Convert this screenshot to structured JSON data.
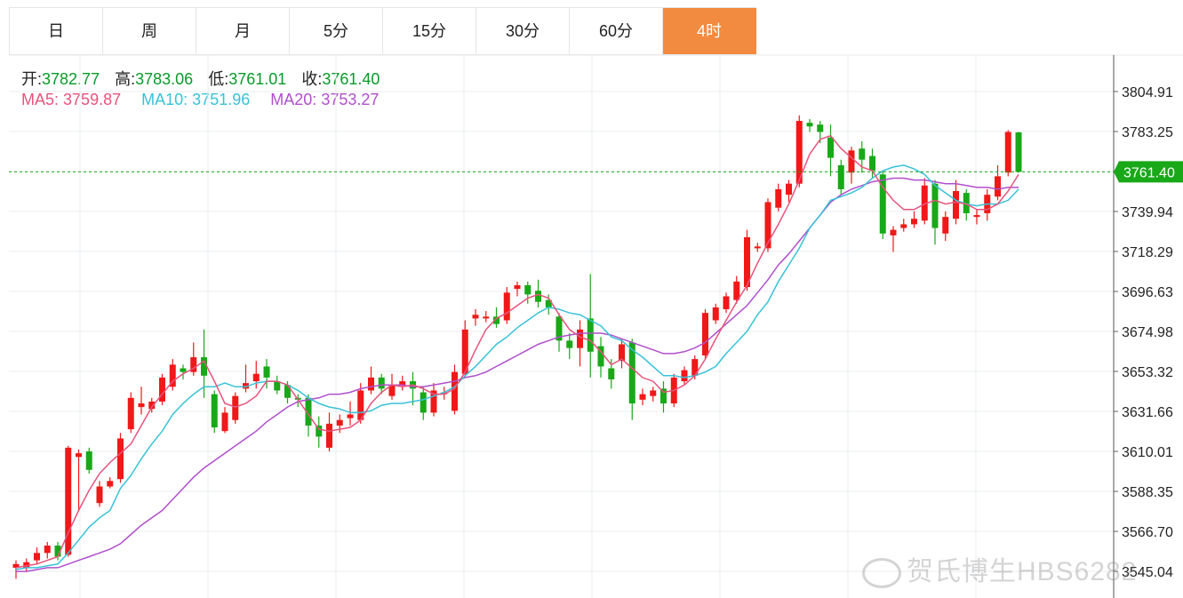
{
  "tabs": [
    {
      "label": "日",
      "active": false
    },
    {
      "label": "周",
      "active": false
    },
    {
      "label": "月",
      "active": false
    },
    {
      "label": "5分",
      "active": false
    },
    {
      "label": "15分",
      "active": false
    },
    {
      "label": "30分",
      "active": false
    },
    {
      "label": "60分",
      "active": false
    },
    {
      "label": "4时",
      "active": true
    }
  ],
  "ohlc": {
    "open_label": "开:",
    "open": "3782.77",
    "high_label": "高:",
    "high": "3783.06",
    "low_label": "低:",
    "low": "3761.01",
    "close_label": "收:",
    "close": "3761.40"
  },
  "ma": {
    "ma5_label": "MA5:",
    "ma5": "3759.87",
    "ma10_label": "MA10:",
    "ma10": "3751.96",
    "ma20_label": "MA20:",
    "ma20": "3753.27"
  },
  "colors": {
    "up": "#f01818",
    "down": "#18a818",
    "ma5": "#e8537c",
    "ma10": "#38c2d8",
    "ma20": "#b04fcc",
    "price_tag": "#18a818",
    "active_tab": "#f28a3f"
  },
  "watermark": "贺氏博生HBS6282",
  "chart_data": {
    "type": "candlestick",
    "y_ticks": [
      "3804.91",
      "3783.25",
      "3761.59",
      "3739.94",
      "3718.29",
      "3696.63",
      "3674.98",
      "3653.32",
      "3631.66",
      "3610.01",
      "3588.35",
      "3566.70",
      "3545.04"
    ],
    "y_tick_values": [
      3804.91,
      3783.25,
      3761.59,
      3739.94,
      3718.29,
      3696.63,
      3674.98,
      3653.32,
      3631.66,
      3610.01,
      3588.35,
      3566.7,
      3545.04
    ],
    "ylim": [
      3540,
      3816
    ],
    "last_price_label": "3761.40",
    "last_price": 3761.4,
    "candles": [
      [
        3547,
        3549,
        3541,
        3551
      ],
      [
        3547,
        3550,
        3545,
        3552
      ],
      [
        3551,
        3555,
        3549,
        3558
      ],
      [
        3555,
        3559,
        3552,
        3561
      ],
      [
        3559,
        3553,
        3551,
        3561
      ],
      [
        3554,
        3612,
        3553,
        3613
      ],
      [
        3607,
        3609,
        3578,
        3611
      ],
      [
        3610,
        3600,
        3598,
        3612
      ],
      [
        3582,
        3591,
        3580,
        3594
      ],
      [
        3591,
        3594,
        3590,
        3596
      ],
      [
        3595,
        3617,
        3593,
        3620
      ],
      [
        3622,
        3639,
        3620,
        3642
      ],
      [
        3634,
        3636,
        3630,
        3645
      ],
      [
        3633,
        3637,
        3631,
        3639
      ],
      [
        3637,
        3650,
        3635,
        3652
      ],
      [
        3645,
        3657,
        3643,
        3660
      ],
      [
        3655,
        3653,
        3649,
        3657
      ],
      [
        3653,
        3661,
        3651,
        3669
      ],
      [
        3661,
        3651,
        3639,
        3676
      ],
      [
        3641,
        3623,
        3620,
        3643
      ],
      [
        3621,
        3631,
        3620,
        3634
      ],
      [
        3627,
        3640,
        3625,
        3642
      ],
      [
        3644,
        3647,
        3642,
        3657
      ],
      [
        3648,
        3652,
        3644,
        3659
      ],
      [
        3656,
        3650,
        3644,
        3660
      ],
      [
        3648,
        3643,
        3641,
        3651
      ],
      [
        3646,
        3639,
        3636,
        3648
      ],
      [
        3639,
        3638,
        3634,
        3641
      ],
      [
        3639,
        3624,
        3618,
        3641
      ],
      [
        3624,
        3618,
        3612,
        3629
      ],
      [
        3612,
        3625,
        3610,
        3631
      ],
      [
        3624,
        3627,
        3620,
        3630
      ],
      [
        3628,
        3630,
        3624,
        3637
      ],
      [
        3627,
        3643,
        3625,
        3647
      ],
      [
        3643,
        3650,
        3641,
        3656
      ],
      [
        3650,
        3644,
        3641,
        3652
      ],
      [
        3640,
        3646,
        3638,
        3652
      ],
      [
        3646,
        3648,
        3643,
        3651
      ],
      [
        3648,
        3644,
        3635,
        3653
      ],
      [
        3642,
        3631,
        3627,
        3645
      ],
      [
        3631,
        3643,
        3629,
        3647
      ],
      [
        3641,
        3642,
        3638,
        3645
      ],
      [
        3632,
        3653,
        3630,
        3657
      ],
      [
        3652,
        3676,
        3650,
        3681
      ],
      [
        3682,
        3684,
        3678,
        3687
      ],
      [
        3682,
        3683,
        3680,
        3686
      ],
      [
        3683,
        3679,
        3677,
        3688
      ],
      [
        3681,
        3696,
        3679,
        3699
      ],
      [
        3698,
        3700,
        3694,
        3702
      ],
      [
        3700,
        3695,
        3690,
        3702
      ],
      [
        3697,
        3691,
        3688,
        3703
      ],
      [
        3692,
        3688,
        3684,
        3695
      ],
      [
        3683,
        3670,
        3664,
        3685
      ],
      [
        3670,
        3666,
        3660,
        3674
      ],
      [
        3666,
        3676,
        3656,
        3681
      ],
      [
        3682,
        3664,
        3650,
        3706
      ],
      [
        3667,
        3656,
        3650,
        3672
      ],
      [
        3655,
        3649,
        3644,
        3660
      ],
      [
        3659,
        3668,
        3655,
        3671
      ],
      [
        3669,
        3636,
        3627,
        3671
      ],
      [
        3638,
        3641,
        3635,
        3644
      ],
      [
        3640,
        3643,
        3637,
        3645
      ],
      [
        3644,
        3636,
        3631,
        3648
      ],
      [
        3636,
        3650,
        3634,
        3652
      ],
      [
        3648,
        3654,
        3646,
        3656
      ],
      [
        3651,
        3660,
        3649,
        3662
      ],
      [
        3662,
        3685,
        3660,
        3687
      ],
      [
        3681,
        3688,
        3679,
        3690
      ],
      [
        3687,
        3694,
        3685,
        3696
      ],
      [
        3692,
        3702,
        3690,
        3705
      ],
      [
        3699,
        3726,
        3697,
        3730
      ],
      [
        3720,
        3721,
        3718,
        3723
      ],
      [
        3720,
        3745,
        3718,
        3747
      ],
      [
        3742,
        3752,
        3740,
        3755
      ],
      [
        3749,
        3755,
        3745,
        3757
      ],
      [
        3755,
        3789,
        3753,
        3792
      ],
      [
        3788,
        3786,
        3783,
        3790
      ],
      [
        3787,
        3783,
        3777,
        3789
      ],
      [
        3780,
        3769,
        3759,
        3787
      ],
      [
        3765,
        3752,
        3749,
        3768
      ],
      [
        3761,
        3773,
        3755,
        3775
      ],
      [
        3774,
        3768,
        3761,
        3778
      ],
      [
        3770,
        3762,
        3758,
        3774
      ],
      [
        3760,
        3728,
        3725,
        3762
      ],
      [
        3727,
        3730,
        3718,
        3732
      ],
      [
        3731,
        3733,
        3729,
        3736
      ],
      [
        3733,
        3736,
        3731,
        3740
      ],
      [
        3735,
        3754,
        3733,
        3758
      ],
      [
        3755,
        3731,
        3722,
        3757
      ],
      [
        3728,
        3737,
        3724,
        3740
      ],
      [
        3736,
        3751,
        3733,
        3757
      ],
      [
        3750,
        3739,
        3735,
        3752
      ],
      [
        3737,
        3738,
        3733,
        3741
      ],
      [
        3739,
        3749,
        3735,
        3752
      ],
      [
        3748,
        3759,
        3746,
        3765
      ],
      [
        3761,
        3783,
        3759,
        3784
      ],
      [
        3782.77,
        3761.4,
        3761.01,
        3783.06
      ]
    ],
    "ma5": [
      3547,
      3548,
      3549,
      3551,
      3553,
      3566,
      3578,
      3589,
      3598,
      3604,
      3609,
      3614,
      3624,
      3634,
      3641,
      3648,
      3652,
      3655,
      3659,
      3648,
      3636,
      3634,
      3636,
      3640,
      3648,
      3648,
      3646,
      3638,
      3630,
      3622,
      3621,
      3622,
      3623,
      3627,
      3636,
      3642,
      3646,
      3645,
      3646,
      3644,
      3641,
      3641,
      3644,
      3653,
      3665,
      3676,
      3682,
      3685,
      3689,
      3693,
      3695,
      3693,
      3684,
      3676,
      3672,
      3670,
      3664,
      3657,
      3660,
      3655,
      3650,
      3648,
      3642,
      3643,
      3646,
      3651,
      3660,
      3671,
      3681,
      3691,
      3700,
      3712,
      3723,
      3733,
      3744,
      3757,
      3771,
      3779,
      3781,
      3774,
      3769,
      3764,
      3762,
      3753,
      3746,
      3741,
      3741,
      3744,
      3746,
      3744,
      3745,
      3744,
      3741,
      3741,
      3744,
      3751,
      3760
    ],
    "ma10": [
      3546,
      3547,
      3547,
      3548,
      3549,
      3555,
      3562,
      3569,
      3574,
      3578,
      3590,
      3597,
      3606,
      3614,
      3621,
      3630,
      3636,
      3641,
      3645,
      3645,
      3647,
      3645,
      3645,
      3647,
      3648,
      3648,
      3646,
      3643,
      3639,
      3636,
      3634,
      3633,
      3631,
      3631,
      3632,
      3635,
      3636,
      3636,
      3637,
      3638,
      3640,
      3642,
      3645,
      3651,
      3656,
      3662,
      3668,
      3672,
      3677,
      3681,
      3685,
      3688,
      3687,
      3685,
      3684,
      3681,
      3678,
      3672,
      3670,
      3665,
      3661,
      3656,
      3651,
      3651,
      3650,
      3651,
      3653,
      3656,
      3663,
      3669,
      3675,
      3684,
      3691,
      3702,
      3711,
      3720,
      3731,
      3738,
      3746,
      3748,
      3750,
      3753,
      3758,
      3762,
      3764,
      3765,
      3763,
      3760,
      3754,
      3750,
      3746,
      3744,
      3743,
      3744,
      3744,
      3746,
      3752
    ],
    "ma20": [
      3545,
      3545,
      3546,
      3547,
      3547,
      3549,
      3551,
      3553,
      3555,
      3557,
      3560,
      3565,
      3570,
      3574,
      3578,
      3584,
      3590,
      3596,
      3601,
      3605,
      3609,
      3613,
      3617,
      3621,
      3626,
      3630,
      3634,
      3637,
      3638,
      3639,
      3641,
      3641,
      3642,
      3644,
      3645,
      3646,
      3646,
      3646,
      3645,
      3645,
      3646,
      3647,
      3648,
      3650,
      3651,
      3653,
      3656,
      3659,
      3662,
      3665,
      3668,
      3670,
      3672,
      3673,
      3674,
      3674,
      3674,
      3673,
      3671,
      3669,
      3667,
      3665,
      3663,
      3663,
      3664,
      3666,
      3669,
      3674,
      3679,
      3684,
      3689,
      3696,
      3703,
      3711,
      3717,
      3724,
      3731,
      3738,
      3745,
      3749,
      3752,
      3754,
      3756,
      3757,
      3758,
      3758,
      3757,
      3757,
      3756,
      3755,
      3755,
      3754,
      3753,
      3753,
      3752,
      3753,
      3753
    ]
  }
}
